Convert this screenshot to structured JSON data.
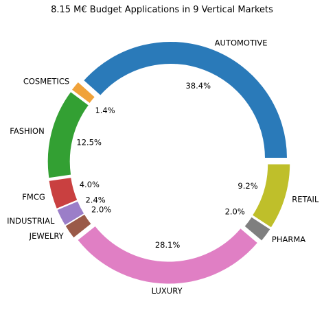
{
  "chart_data": {
    "type": "pie",
    "title": "8.15 M€ Budget Applications in 9 Vertical Markets",
    "categories": [
      "AUTOMOTIVE",
      "COSMETICS",
      "FASHION",
      "FMCG",
      "INDUSTRIAL",
      "JEWELRY",
      "LUXURY",
      "PHARMA",
      "RETAIL"
    ],
    "values": [
      38.4,
      1.4,
      12.5,
      4.0,
      2.4,
      2.0,
      28.1,
      2.0,
      9.2
    ],
    "value_labels": [
      "38.4%",
      "1.4%",
      "12.5%",
      "4.0%",
      "2.4%",
      "2.0%",
      "28.1%",
      "2.0%",
      "9.2%"
    ],
    "colors": [
      "#2a7ab9",
      "#f0a23a",
      "#33a033",
      "#c94040",
      "#9b7ec8",
      "#9a5a48",
      "#e07fc4",
      "#7f7f7f",
      "#bfbf2a"
    ],
    "donut": true,
    "exploded": true,
    "legend": "none"
  }
}
